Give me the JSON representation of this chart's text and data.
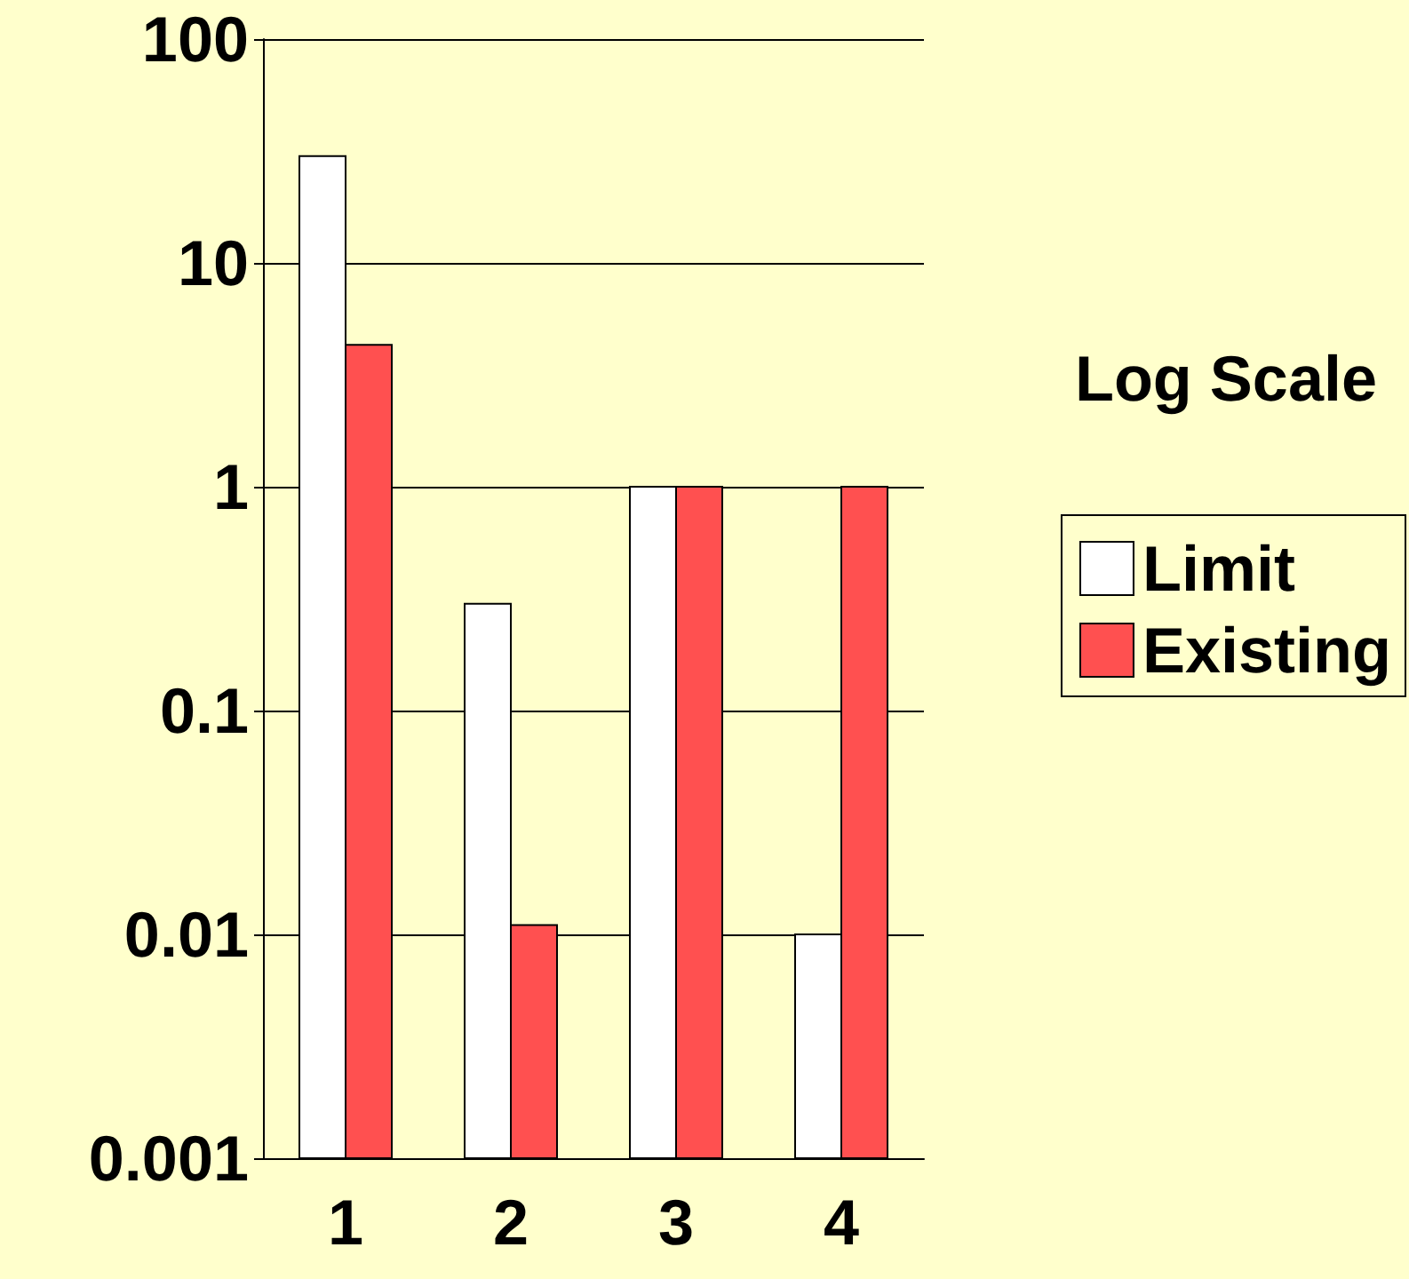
{
  "chart_data": {
    "type": "bar",
    "legend_title": "Log Scale",
    "categories": [
      "1",
      "2",
      "3",
      "4"
    ],
    "series": [
      {
        "name": "Limit",
        "color": "#ffffff",
        "values": [
          30,
          0.3,
          1,
          0.01
        ]
      },
      {
        "name": "Existing",
        "color": "#ff5050",
        "values": [
          4.3,
          0.011,
          1,
          1
        ]
      }
    ],
    "log": "y",
    "ylim": [
      0.001,
      100
    ],
    "yticks": [
      0.001,
      0.01,
      0.1,
      1,
      10,
      100
    ],
    "grid": "y",
    "legend": "right"
  }
}
